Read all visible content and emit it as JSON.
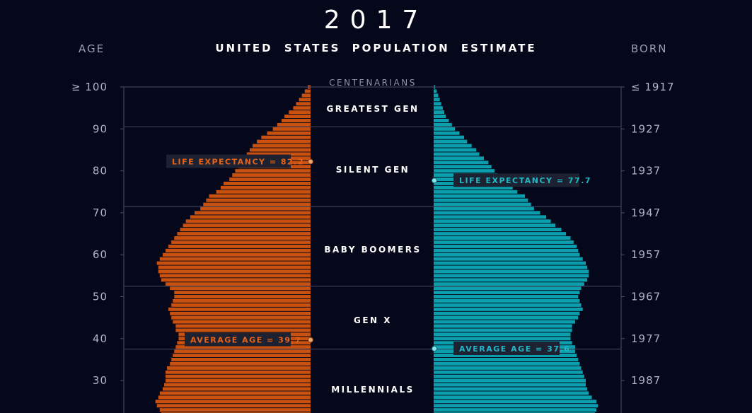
{
  "header": {
    "year": "2017",
    "subtitle": "UNITED STATES POPULATION ESTIMATE",
    "left_label": "AGE",
    "right_label": "BORN"
  },
  "colors": {
    "background": "#05071a",
    "female": "#c8510f",
    "male": "#0b9fae",
    "axis": "#4a4f6a",
    "tick_text": "#b0b5c6"
  },
  "chart_data": {
    "type": "bar",
    "orientation": "horizontal-population-pyramid",
    "age_ticks": [
      "≥ 100",
      "90",
      "80",
      "70",
      "60",
      "50",
      "40",
      "30"
    ],
    "age_tick_values": [
      100,
      90,
      80,
      70,
      60,
      50,
      40,
      30
    ],
    "born_ticks": [
      "≤ 1917",
      "1927",
      "1937",
      "1947",
      "1957",
      "1967",
      "1977",
      "1987"
    ],
    "age_range_shown": [
      22,
      100
    ],
    "generations": [
      {
        "name": "CENTENARIANS",
        "age_from": 100,
        "age_to": 101
      },
      {
        "name": "GREATEST GEN",
        "age_from": 90,
        "age_to": 100
      },
      {
        "name": "SILENT GEN",
        "age_from": 71,
        "age_to": 90
      },
      {
        "name": "BABY BOOMERS",
        "age_from": 52,
        "age_to": 71
      },
      {
        "name": "GEN X",
        "age_from": 37,
        "age_to": 52
      },
      {
        "name": "MILLENNIALS",
        "age_from": 22,
        "age_to": 37
      }
    ],
    "annotations": {
      "female_life_expectancy": {
        "label": "LIFE EXPECTANCY = 82.2",
        "age": 82.2
      },
      "female_average_age": {
        "label": "AVERAGE AGE = 39.7",
        "age": 39.7
      },
      "male_life_expectancy": {
        "label": "LIFE EXPECTANCY = 77.7",
        "age": 77.7
      },
      "male_average_age": {
        "label": "AVERAGE AGE = 37.6",
        "age": 37.6
      }
    },
    "series": [
      {
        "side": "female",
        "ages": [
          100,
          99,
          98,
          97,
          96,
          95,
          94,
          93,
          92,
          91,
          90,
          89,
          88,
          87,
          86,
          85,
          84,
          83,
          82,
          81,
          80,
          79,
          78,
          77,
          76,
          75,
          74,
          73,
          72,
          71,
          70,
          69,
          68,
          67,
          66,
          65,
          64,
          63,
          62,
          61,
          60,
          59,
          58,
          57,
          56,
          55,
          54,
          53,
          52,
          51,
          50,
          49,
          48,
          47,
          46,
          45,
          44,
          43,
          42,
          41,
          40,
          39,
          38,
          37,
          36,
          35,
          34,
          33,
          32,
          31,
          30,
          29,
          28,
          27,
          26,
          25,
          24,
          23,
          22
        ],
        "values": [
          0.02,
          0.04,
          0.06,
          0.08,
          0.1,
          0.12,
          0.15,
          0.18,
          0.2,
          0.23,
          0.26,
          0.3,
          0.34,
          0.37,
          0.4,
          0.42,
          0.44,
          0.47,
          0.48,
          0.5,
          0.52,
          0.54,
          0.56,
          0.6,
          0.62,
          0.65,
          0.7,
          0.72,
          0.74,
          0.76,
          0.8,
          0.83,
          0.86,
          0.88,
          0.9,
          0.92,
          0.94,
          0.96,
          0.98,
          1.0,
          1.02,
          1.04,
          1.06,
          1.05,
          1.05,
          1.04,
          1.03,
          1.0,
          0.97,
          0.94,
          0.94,
          0.95,
          0.96,
          0.98,
          0.97,
          0.96,
          0.95,
          0.93,
          0.93,
          0.91,
          0.91,
          0.92,
          0.93,
          0.94,
          0.95,
          0.96,
          0.97,
          0.99,
          1.0,
          1.0,
          1.0,
          1.01,
          1.02,
          1.04,
          1.05,
          1.07,
          1.06,
          1.04,
          1.03
        ]
      },
      {
        "side": "male",
        "ages": [
          100,
          99,
          98,
          97,
          96,
          95,
          94,
          93,
          92,
          91,
          90,
          89,
          88,
          87,
          86,
          85,
          84,
          83,
          82,
          81,
          80,
          79,
          78,
          77,
          76,
          75,
          74,
          73,
          72,
          71,
          70,
          69,
          68,
          67,
          66,
          65,
          64,
          63,
          62,
          61,
          60,
          59,
          58,
          57,
          56,
          55,
          54,
          53,
          52,
          51,
          50,
          49,
          48,
          47,
          46,
          45,
          44,
          43,
          42,
          41,
          40,
          39,
          38,
          37,
          36,
          35,
          34,
          33,
          32,
          31,
          30,
          29,
          28,
          27,
          26,
          25,
          24,
          23,
          22
        ],
        "values": [
          0.01,
          0.02,
          0.03,
          0.04,
          0.05,
          0.06,
          0.07,
          0.08,
          0.1,
          0.12,
          0.14,
          0.17,
          0.2,
          0.22,
          0.25,
          0.28,
          0.3,
          0.33,
          0.36,
          0.38,
          0.4,
          0.42,
          0.45,
          0.48,
          0.52,
          0.55,
          0.6,
          0.62,
          0.64,
          0.66,
          0.7,
          0.74,
          0.77,
          0.8,
          0.84,
          0.87,
          0.9,
          0.92,
          0.94,
          0.95,
          0.96,
          0.98,
          1.0,
          1.01,
          1.02,
          1.02,
          1.01,
          0.99,
          0.97,
          0.96,
          0.95,
          0.96,
          0.97,
          0.98,
          0.96,
          0.95,
          0.93,
          0.91,
          0.91,
          0.9,
          0.9,
          0.91,
          0.93,
          0.93,
          0.94,
          0.95,
          0.96,
          0.97,
          0.98,
          0.99,
          1.0,
          1.0,
          1.01,
          1.02,
          1.04,
          1.07,
          1.08,
          1.07,
          1.06
        ]
      }
    ]
  }
}
